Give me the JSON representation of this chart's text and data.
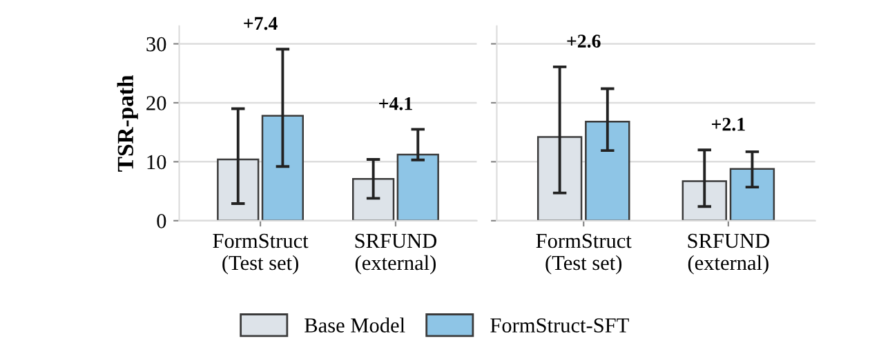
{
  "chart_data": [
    {
      "type": "bar",
      "ylabel": "TSR-path",
      "categories": [
        "FormStruct\n(Test set)",
        "SRFUND\n(external)"
      ],
      "series": [
        {
          "name": "Base Model",
          "color": "#dde3e9",
          "values": [
            10.4,
            7.1
          ],
          "errors": [
            [
              2.9,
              19.0
            ],
            [
              3.8,
              10.4
            ]
          ]
        },
        {
          "name": "FormStruct-SFT",
          "color": "#8ec5e6",
          "values": [
            17.8,
            11.2
          ],
          "errors": [
            [
              9.2,
              29.1
            ],
            [
              10.3,
              15.5
            ]
          ]
        }
      ],
      "annotations": [
        "+7.4",
        "+4.1"
      ],
      "ylim": [
        0,
        33
      ],
      "yticks": [
        0,
        10,
        20,
        30
      ],
      "grid": "y",
      "legend": "bottom"
    },
    {
      "type": "bar",
      "categories": [
        "FormStruct\n(Test set)",
        "SRFUND\n(external)"
      ],
      "series": [
        {
          "color": "#dde3e9",
          "values": [
            14.2,
            6.7
          ],
          "errors": [
            [
              4.7,
              26.1
            ],
            [
              2.4,
              12.0
            ]
          ]
        },
        {
          "color": "#8ec5e6",
          "values": [
            16.8,
            8.8
          ],
          "errors": [
            [
              11.9,
              22.4
            ],
            [
              5.7,
              11.7
            ]
          ]
        }
      ],
      "annotations": [
        "+2.6",
        "+2.1"
      ],
      "ylim": [
        0,
        33
      ],
      "yticks": [
        0,
        10,
        20,
        30
      ],
      "grid": "y",
      "tick_labels": "x"
    }
  ]
}
